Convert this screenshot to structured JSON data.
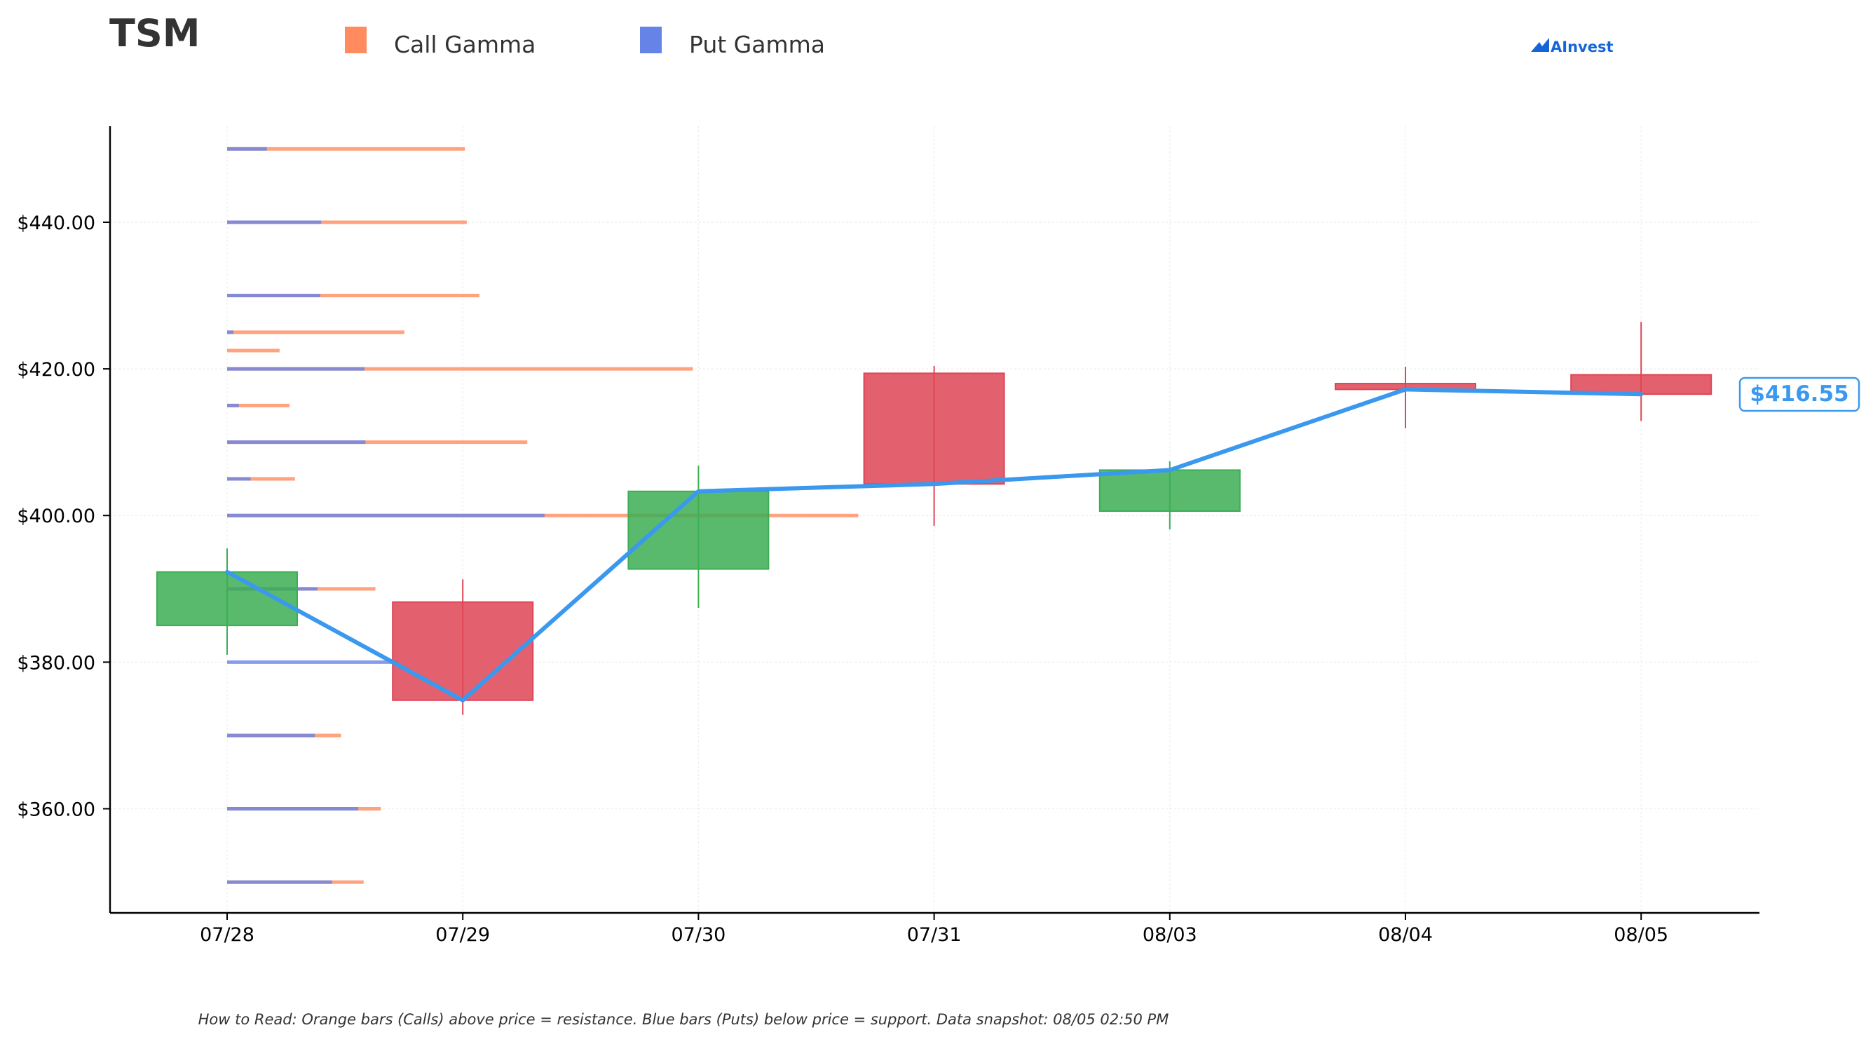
{
  "chart_data": {
    "type": "candlestick",
    "title": "TSM",
    "legend": [
      {
        "name": "Call Gamma",
        "color": "#FF8B5E"
      },
      {
        "name": "Put Gamma",
        "color": "#6684E8"
      }
    ],
    "brand": "AInvest",
    "categories": [
      "07/28",
      "07/29",
      "07/30",
      "07/31",
      "08/03",
      "08/04",
      "08/05"
    ],
    "ohlc": [
      {
        "date": "07/28",
        "open": 385.0,
        "high": 395.5,
        "low": 381.0,
        "close": 392.3
      },
      {
        "date": "07/29",
        "open": 388.2,
        "high": 391.3,
        "low": 372.8,
        "close": 374.8
      },
      {
        "date": "07/30",
        "open": 392.7,
        "high": 406.8,
        "low": 387.4,
        "close": 403.3
      },
      {
        "date": "07/31",
        "open": 419.4,
        "high": 420.4,
        "low": 398.6,
        "close": 404.3
      },
      {
        "date": "08/03",
        "open": 400.6,
        "high": 407.4,
        "low": 398.1,
        "close": 406.2
      },
      {
        "date": "08/04",
        "open": 418.0,
        "high": 420.3,
        "low": 411.9,
        "close": 417.2
      },
      {
        "date": "08/05",
        "open": 419.2,
        "high": 426.4,
        "low": 412.9,
        "close": 416.55
      }
    ],
    "price_line": [
      392.3,
      374.8,
      403.3,
      404.3,
      406.2,
      417.2,
      416.55
    ],
    "current_price": "$416.55",
    "gamma_levels": [
      {
        "strike": 450.0,
        "put": 0.44,
        "call": 2.63
      },
      {
        "strike": 440.0,
        "put": 1.04,
        "call": 2.65
      },
      {
        "strike": 430.0,
        "put": 1.03,
        "call": 2.79
      },
      {
        "strike": 425.0,
        "put": 0.07,
        "call": 1.96
      },
      {
        "strike": 422.5,
        "put": 0.0,
        "call": 0.58
      },
      {
        "strike": 420.0,
        "put": 1.52,
        "call": 5.15
      },
      {
        "strike": 415.0,
        "put": 0.13,
        "call": 0.69
      },
      {
        "strike": 410.0,
        "put": 1.53,
        "call": 3.32
      },
      {
        "strike": 405.0,
        "put": 0.26,
        "call": 0.75
      },
      {
        "strike": 400.0,
        "put": 3.51,
        "call": 6.98
      },
      {
        "strike": 390.0,
        "put": 1.0,
        "call": 1.64
      },
      {
        "strike": 380.0,
        "put": 1.88,
        "call": 0.0
      },
      {
        "strike": 370.0,
        "put": 0.97,
        "call": 1.26
      },
      {
        "strike": 360.0,
        "put": 1.45,
        "call": 1.7
      },
      {
        "strike": 350.0,
        "put": 1.16,
        "call": 1.51
      }
    ],
    "y_ticks": [
      {
        "value": 360,
        "label": "$360.00"
      },
      {
        "value": 380,
        "label": "$380.00"
      },
      {
        "value": 400,
        "label": "$400.00"
      },
      {
        "value": 420,
        "label": "$420.00"
      },
      {
        "value": 440,
        "label": "$440.00"
      }
    ],
    "ylim": [
      345.8,
      453.1
    ],
    "grid": true,
    "legend_position": "top",
    "colors": {
      "up": "#3CAE54",
      "down": "#DE4555",
      "price_line": "#3A99EE",
      "call": "#FF8B5E",
      "put": "#6684E8",
      "brand": "#1565D8"
    },
    "footnote": "How to Read: Orange bars (Calls) above price = resistance. Blue bars (Puts) below price = support. Data snapshot: 08/05 02:50 PM"
  }
}
